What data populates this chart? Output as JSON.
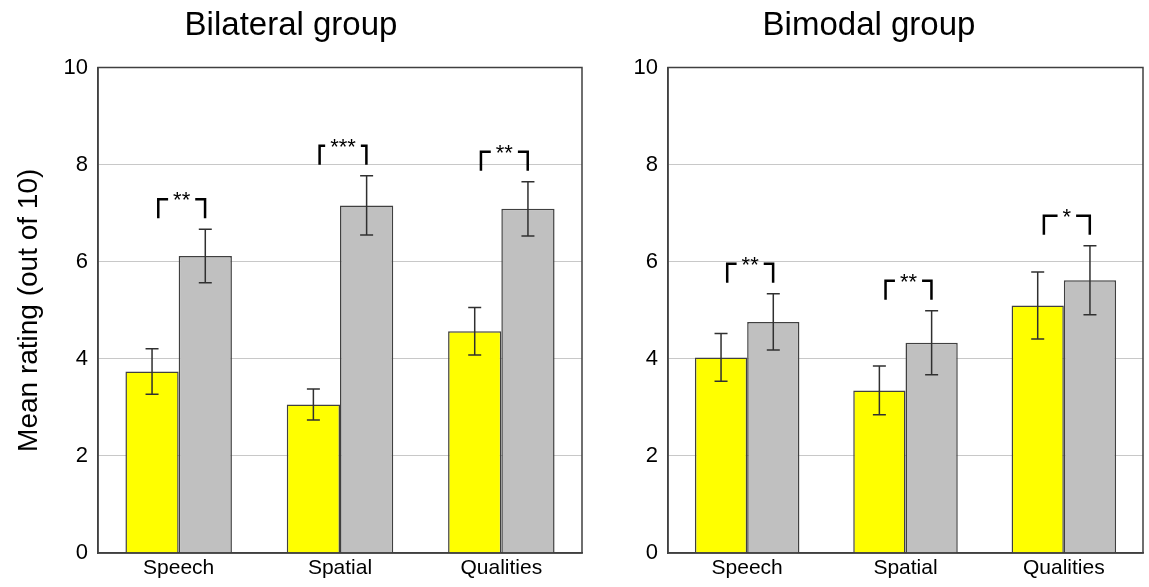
{
  "chart_data": [
    {
      "type": "bar",
      "title": "Bilateral group",
      "ylabel": "Mean rating (out of 10)",
      "categories": [
        "Speech",
        "Spatial",
        "Qualities"
      ],
      "series": [
        {
          "color": "#ffff00",
          "values": [
            3.74,
            3.06,
            4.57
          ],
          "errors": [
            0.47,
            0.32,
            0.49
          ]
        },
        {
          "color": "#c0c0c0",
          "values": [
            6.12,
            7.16,
            7.09
          ],
          "errors": [
            0.55,
            0.61,
            0.56
          ]
        }
      ],
      "ylim": [
        0,
        10
      ],
      "yticks": [
        0,
        2,
        4,
        6,
        8,
        10
      ],
      "grid": "y",
      "annotations": [
        "**",
        "***",
        "**"
      ]
    },
    {
      "type": "bar",
      "title": "Bimodal group",
      "categories": [
        "Speech",
        "Spatial",
        "Qualities"
      ],
      "series": [
        {
          "color": "#ffff00",
          "values": [
            4.03,
            3.35,
            5.1
          ],
          "errors": [
            0.49,
            0.5,
            0.69
          ]
        },
        {
          "color": "#c0c0c0",
          "values": [
            4.76,
            4.33,
            5.62
          ],
          "errors": [
            0.58,
            0.66,
            0.71
          ]
        }
      ],
      "ylim": [
        0,
        10
      ],
      "yticks": [
        0,
        2,
        4,
        6,
        8,
        10
      ],
      "grid": "y",
      "annotations": [
        "**",
        "**",
        "*"
      ]
    }
  ]
}
